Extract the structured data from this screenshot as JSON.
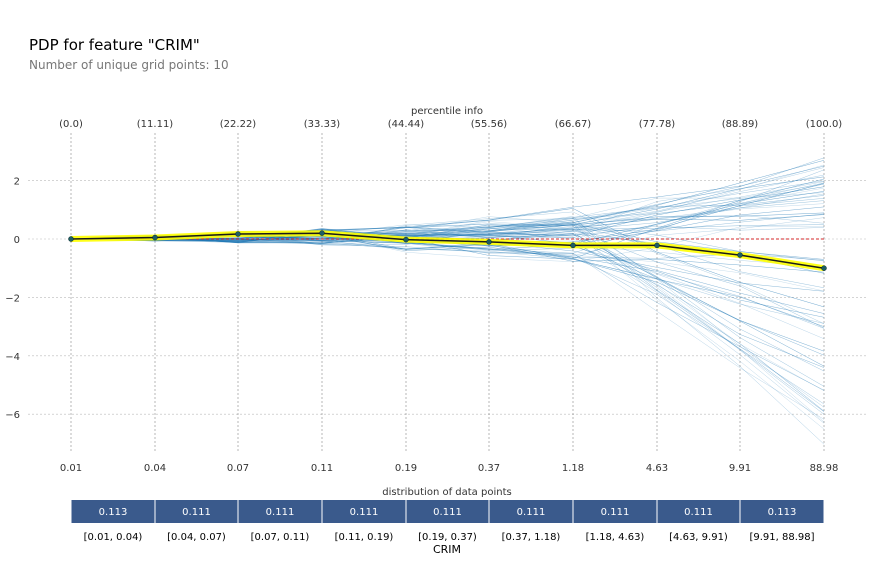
{
  "title": "PDP for feature \"CRIM\"",
  "subtitle": "Number of unique grid points: 10",
  "colors": {
    "pdp_fill": "#ffff00",
    "pdp_line": "#1a1a1a",
    "ice": "#1f77b4",
    "baseline": "#d62728",
    "bar": "#3a5a8c"
  },
  "chart_data": {
    "type": "line",
    "title": "PDP for feature \"CRIM\"",
    "top_axis_label": "percentile info",
    "percentiles": [
      "(0.0)",
      "(11.11)",
      "(22.22)",
      "(33.33)",
      "(44.44)",
      "(55.56)",
      "(66.67)",
      "(77.78)",
      "(88.89)",
      "(100.0)"
    ],
    "grid_points": [
      "0.01",
      "0.04",
      "0.07",
      "0.11",
      "0.19",
      "0.37",
      "1.18",
      "4.63",
      "9.91",
      "88.98"
    ],
    "pdp_values": [
      0.0,
      0.05,
      0.17,
      0.2,
      -0.02,
      -0.1,
      -0.22,
      -0.22,
      -0.55,
      -1.0
    ],
    "ylim": [
      -7.5,
      3.7
    ],
    "yticks": [
      2,
      0,
      -2,
      -4,
      -6
    ],
    "baseline": 0,
    "distribution_label": "distribution of data points",
    "distribution": [
      {
        "range": "[0.01, 0.04)",
        "value": "0.113"
      },
      {
        "range": "[0.04, 0.07)",
        "value": "0.111"
      },
      {
        "range": "[0.07, 0.11)",
        "value": "0.111"
      },
      {
        "range": "[0.11, 0.19)",
        "value": "0.111"
      },
      {
        "range": "[0.19, 0.37)",
        "value": "0.111"
      },
      {
        "range": "[0.37, 1.18)",
        "value": "0.111"
      },
      {
        "range": "[1.18, 4.63)",
        "value": "0.111"
      },
      {
        "range": "[4.63, 9.91)",
        "value": "0.111"
      },
      {
        "range": "[9.91, 88.98]",
        "value": "0.113"
      }
    ],
    "xlabel": "CRIM"
  }
}
